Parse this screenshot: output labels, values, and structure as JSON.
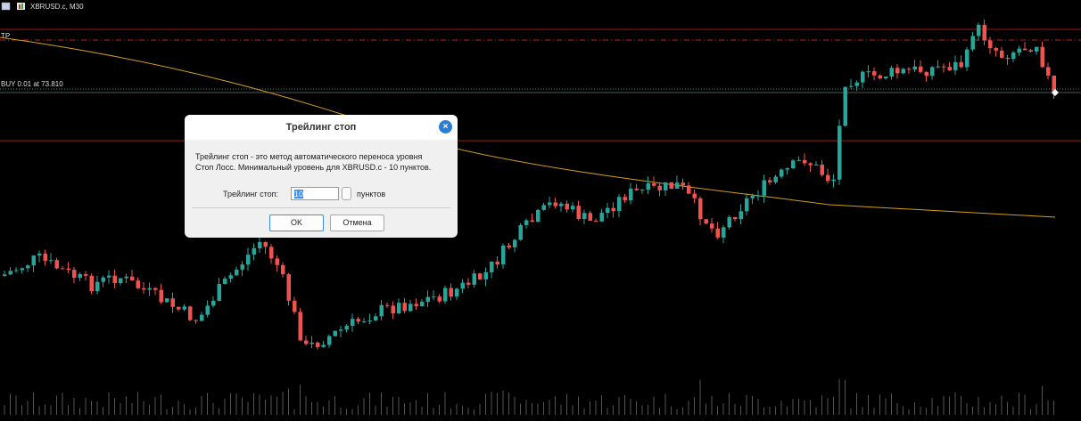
{
  "header": {
    "symbol": "XBRUSD.c, M30"
  },
  "chart_labels": {
    "tp": "TP",
    "position": "BUY 0.01 at 73.810"
  },
  "dialog": {
    "title": "Трейлинг стоп",
    "description": [
      "Трейлинг стоп - это метод автоматического переноса уровня",
      "Стоп Лосс. Минимальный уровень для XBRUSD.c -  10 пунктов."
    ],
    "field_label": "Трейлинг стоп:",
    "field_value": "10",
    "field_unit": "пунктов",
    "ok": "OK",
    "cancel": "Отмена"
  }
}
